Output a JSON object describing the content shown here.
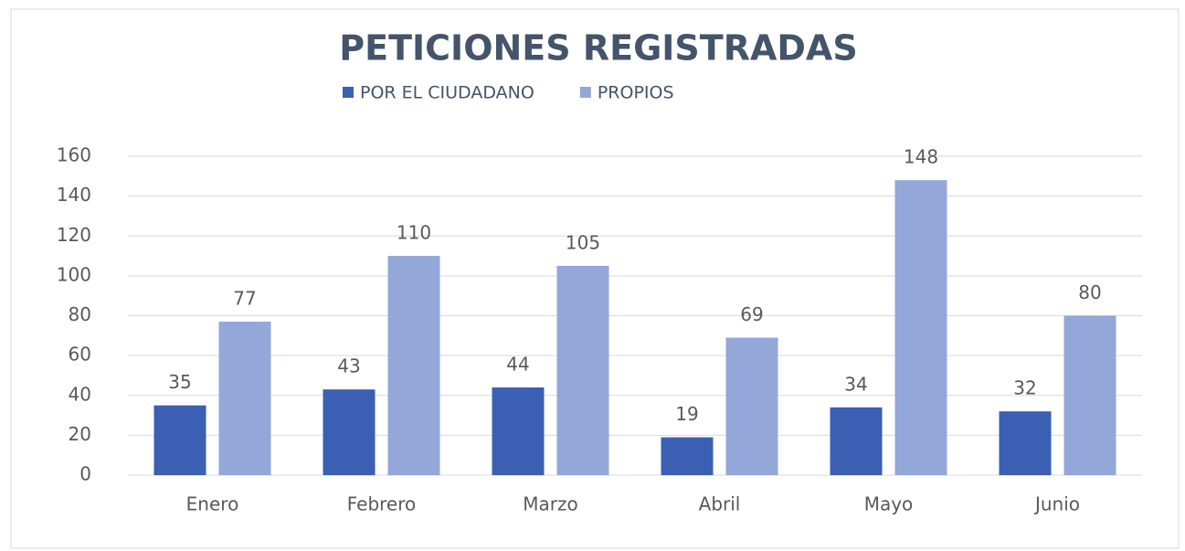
{
  "chart_data": {
    "type": "bar",
    "title": "PETICIONES REGISTRADAS",
    "categories": [
      "Enero",
      "Febrero",
      "Marzo",
      "Abril",
      "Mayo",
      "Junio"
    ],
    "series": [
      {
        "name": "POR EL CIUDADANO",
        "color": "#3a5fb3",
        "values": [
          35,
          43,
          44,
          19,
          34,
          32
        ]
      },
      {
        "name": "PROPIOS",
        "color": "#94a7d9",
        "values": [
          77,
          110,
          105,
          69,
          148,
          80
        ]
      }
    ],
    "ylim": [
      0,
      160
    ],
    "yticks": [
      0,
      20,
      40,
      60,
      80,
      100,
      120,
      140,
      160
    ],
    "grid": true,
    "legend": "top"
  }
}
